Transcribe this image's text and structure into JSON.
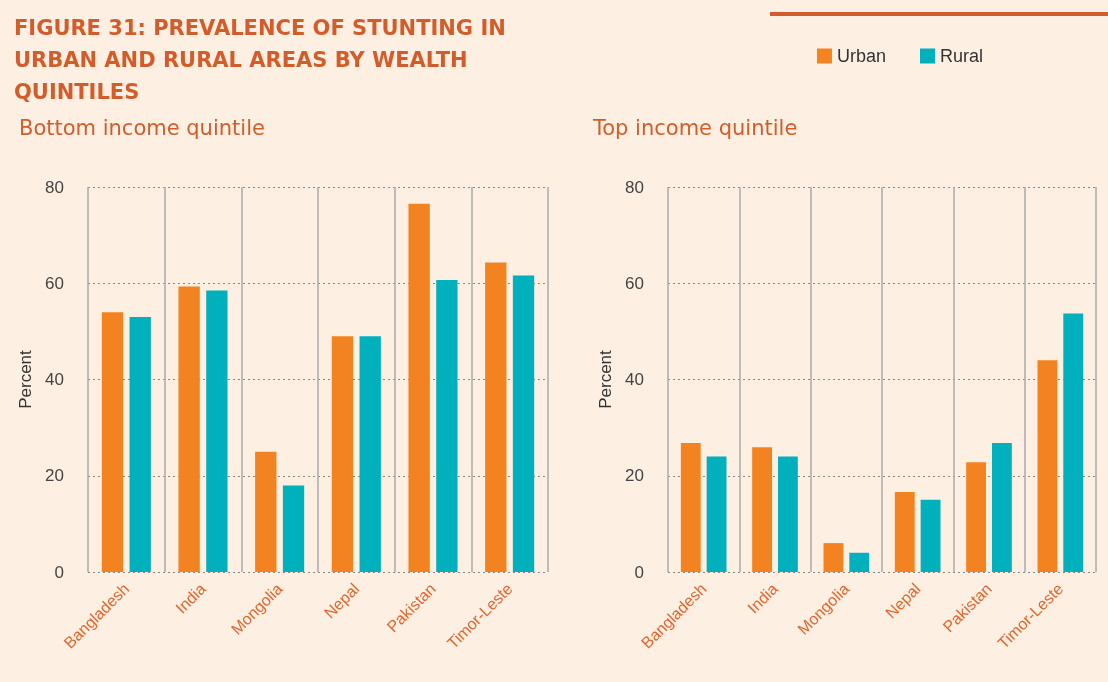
{
  "chart_data": [
    {
      "type": "bar",
      "title": "FIGURE 31: PREVALENCE OF STUNTING IN URBAN AND RURAL AREAS BY WEALTH QUINTILES",
      "subtitle": "Bottom income quintile",
      "ylabel": "Percent",
      "categories": [
        "Bangladesh",
        "India",
        "Mongolia",
        "Nepal",
        "Pakistan",
        "Timor-Leste"
      ],
      "series": [
        {
          "color": "#f38220",
          "values": [
            54,
            59.3,
            25,
            49,
            76.5,
            64.3
          ]
        },
        {
          "color": "#00b0bc",
          "values": [
            53,
            58.5,
            18,
            49,
            60.7,
            61.6
          ]
        }
      ],
      "ylim": [
        0,
        80
      ],
      "yticks": [
        0,
        20,
        40,
        60,
        80
      ],
      "grid": true
    },
    {
      "type": "bar",
      "subtitle": "Top income quintile",
      "ylabel": "Percent",
      "categories": [
        "Bangladesh",
        "India",
        "Mongolia",
        "Nepal",
        "Pakistan",
        "Timor-Leste"
      ],
      "series": [
        {
          "name": "Urban",
          "color": "#f38220",
          "values": [
            26.8,
            25.9,
            6,
            16.6,
            22.8,
            44
          ]
        },
        {
          "name": "Rural",
          "color": "#00b0bc",
          "values": [
            24,
            24,
            4,
            15,
            26.8,
            53.7
          ]
        }
      ],
      "ylim": [
        0,
        80
      ],
      "yticks": [
        0,
        20,
        40,
        60,
        80
      ],
      "grid": true,
      "legend": "top right"
    }
  ]
}
